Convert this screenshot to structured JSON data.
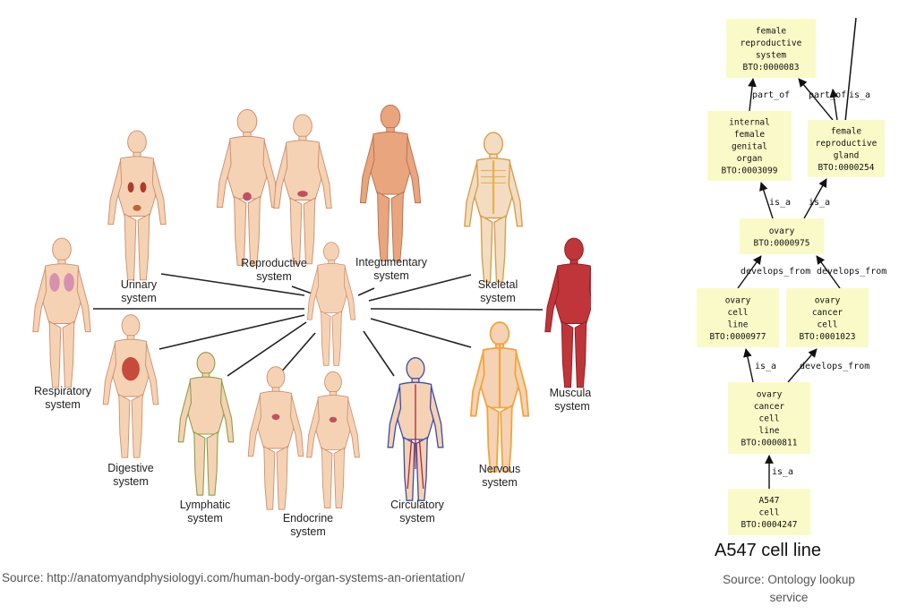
{
  "organ_systems": {
    "labels": [
      {
        "id": "urinary",
        "lines": [
          "Urinary",
          "system"
        ]
      },
      {
        "id": "reproductive",
        "lines": [
          "Reproductive",
          "system"
        ]
      },
      {
        "id": "integumentary",
        "lines": [
          "Integumentary",
          "system"
        ]
      },
      {
        "id": "skeletal",
        "lines": [
          "Skeletal",
          "system"
        ]
      },
      {
        "id": "respiratory",
        "lines": [
          "Respiratory",
          "system"
        ]
      },
      {
        "id": "muscular",
        "lines": [
          "Muscular",
          "system"
        ]
      },
      {
        "id": "digestive",
        "lines": [
          "Digestive",
          "system"
        ]
      },
      {
        "id": "lymphatic",
        "lines": [
          "Lymphatic",
          "system"
        ]
      },
      {
        "id": "endocrine",
        "lines": [
          "Endocrine",
          "system"
        ]
      },
      {
        "id": "circulatory",
        "lines": [
          "Circulatory",
          "system"
        ]
      },
      {
        "id": "nervous",
        "lines": [
          "Nervous",
          "system"
        ]
      }
    ],
    "source": "Source: http://anatomyandphysiologyi.com/human-body-organ-systems-an-orientation/"
  },
  "ontology": {
    "nodes": [
      {
        "id": "n83",
        "lines": [
          "female",
          "reproductive",
          "system",
          "BTO:0000083"
        ]
      },
      {
        "id": "n3099",
        "lines": [
          "internal",
          "female",
          "genital",
          "organ",
          "BTO:0003099"
        ]
      },
      {
        "id": "n254",
        "lines": [
          "female",
          "reproductive",
          "gland",
          "BTO:0000254"
        ]
      },
      {
        "id": "n975",
        "lines": [
          "ovary",
          "BTO:0000975"
        ]
      },
      {
        "id": "n977",
        "lines": [
          "ovary",
          "cell",
          "line",
          "BTO:0000977"
        ]
      },
      {
        "id": "n1023",
        "lines": [
          "ovary",
          "cancer",
          "cell",
          "BTO:0001023"
        ]
      },
      {
        "id": "n811",
        "lines": [
          "ovary",
          "cancer",
          "cell",
          "line",
          "BTO:0000811"
        ]
      },
      {
        "id": "n4247",
        "lines": [
          "A547",
          "cell",
          "BTO:0004247"
        ]
      }
    ],
    "edges": [
      {
        "id": "e1",
        "label": "part_of"
      },
      {
        "id": "e2",
        "label": "part_of"
      },
      {
        "id": "e3",
        "label": "is_a"
      },
      {
        "id": "e4",
        "label": "is_a"
      },
      {
        "id": "e5",
        "label": "is_a"
      },
      {
        "id": "e6",
        "label": "develops_from"
      },
      {
        "id": "e7",
        "label": "develops_from"
      },
      {
        "id": "e8",
        "label": "is_a"
      },
      {
        "id": "e9",
        "label": "develops_from"
      },
      {
        "id": "e10",
        "label": "is_a"
      }
    ],
    "caption": "A547 cell line",
    "source": "Source: Ontology lookup service"
  },
  "colors": {
    "node_fill": "#fafac8",
    "skin": "#f6d2b4",
    "skin_outline": "#c98f6e",
    "muscle": "#c0353a",
    "nerve": "#f0a640",
    "blood": "#3a4fa8",
    "line": "#222222"
  }
}
